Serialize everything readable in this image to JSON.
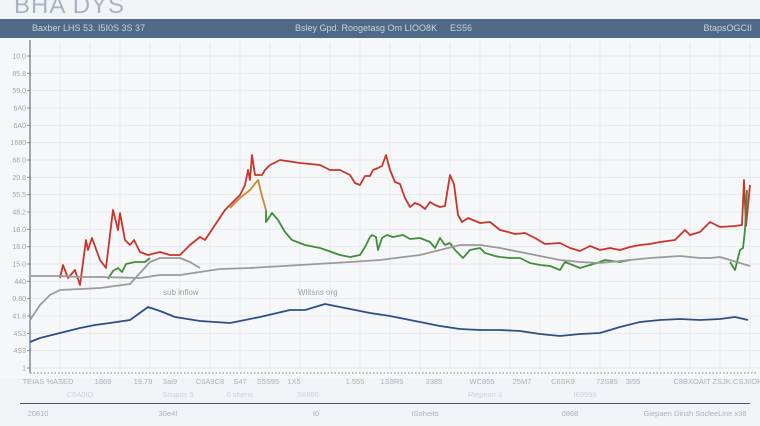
{
  "header": {
    "title": "BHA DYS",
    "bar_left": "Baxber LHS 53. I5I0S 3S 37",
    "bar_mid": "Bsley Gpd. Roogetasg Om LIOO8K",
    "bar_mid2": "ES56",
    "bar_right": "BtapsOGCII"
  },
  "colors": {
    "header_bar": "#4f6987",
    "red": "#c8352a",
    "green": "#3f8f3a",
    "orange": "#c98a2a",
    "gray": "#9a9a9a",
    "blue": "#2d4f86"
  },
  "annotations": [
    "sub inflow",
    "Wlitsns  org"
  ],
  "chart_data": {
    "type": "line",
    "grid": true,
    "xlim": [
      0,
      720
    ],
    "ylim": [
      0,
      312
    ],
    "y_tick_labels": [
      "10.0",
      "85.8",
      "59.0",
      "6A0",
      "6A0",
      "1680",
      "68.0",
      "20.8",
      "55.5",
      "48.2",
      "18.0",
      "18.0",
      "15.0",
      "440",
      "0.80",
      "41.8",
      "4S3",
      "4S3",
      "1"
    ],
    "x_tick_labels": [
      "TEIAS %ASED",
      "1869",
      "19.79",
      "3ai9",
      "C6A9C8",
      "S47",
      "S5S95",
      "1X5",
      "1.555",
      "1S9R5",
      "3385",
      "WC855",
      "25M7",
      "C6SK9",
      "72S85",
      "3I55",
      "C8BXOAIT ZSJK.CSJIIOH"
    ],
    "x_sub_labels": [
      "C6A0IO",
      "Scupos 5",
      "0 sheno",
      "S6880",
      "Riepeon 3",
      "I69999"
    ],
    "bottom_labels": [
      "20810",
      "30e4I",
      "I0",
      "ISoheits",
      "0868",
      "Giepaen Dinsh SocleeLine x36"
    ],
    "series": [
      {
        "color": "#c8352a",
        "points": [
          [
            30,
            90
          ],
          [
            33,
            103
          ],
          [
            38,
            90
          ],
          [
            45,
            98
          ],
          [
            50,
            83
          ],
          [
            56,
            128
          ],
          [
            58,
            118
          ],
          [
            62,
            130
          ],
          [
            70,
            108
          ],
          [
            76,
            100
          ],
          [
            83,
            158
          ],
          [
            88,
            138
          ],
          [
            90,
            155
          ],
          [
            95,
            128
          ],
          [
            100,
            123
          ],
          [
            104,
            128
          ],
          [
            110,
            116
          ],
          [
            118,
            113
          ],
          [
            130,
            116
          ],
          [
            140,
            113
          ],
          [
            150,
            113
          ],
          [
            160,
            123
          ],
          [
            170,
            131
          ],
          [
            175,
            128
          ],
          [
            185,
            143
          ],
          [
            195,
            158
          ],
          [
            200,
            163
          ],
          [
            210,
            173
          ],
          [
            215,
            183
          ],
          [
            218,
            198
          ],
          [
            220,
            188
          ],
          [
            222,
            213
          ],
          [
            225,
            193
          ],
          [
            232,
            193
          ],
          [
            235,
            198
          ],
          [
            240,
            203
          ],
          [
            250,
            208
          ],
          [
            270,
            205
          ],
          [
            290,
            203
          ],
          [
            300,
            198
          ],
          [
            310,
            198
          ],
          [
            320,
            193
          ],
          [
            325,
            185
          ],
          [
            330,
            183
          ],
          [
            335,
            192
          ],
          [
            340,
            192
          ],
          [
            343,
            198
          ],
          [
            348,
            200
          ],
          [
            352,
            202
          ],
          [
            356,
            213
          ],
          [
            360,
            198
          ],
          [
            365,
            186
          ],
          [
            370,
            184
          ],
          [
            375,
            170
          ],
          [
            380,
            161
          ],
          [
            385,
            165
          ],
          [
            390,
            163
          ],
          [
            395,
            159
          ],
          [
            400,
            166
          ],
          [
            405,
            163
          ],
          [
            410,
            161
          ],
          [
            415,
            162
          ],
          [
            420,
            193
          ],
          [
            424,
            184
          ],
          [
            428,
            153
          ],
          [
            432,
            146
          ],
          [
            438,
            150
          ],
          [
            450,
            145
          ],
          [
            460,
            146
          ],
          [
            470,
            138
          ],
          [
            478,
            136
          ],
          [
            485,
            134
          ],
          [
            495,
            135
          ],
          [
            505,
            130
          ],
          [
            515,
            124
          ],
          [
            530,
            125
          ],
          [
            540,
            120
          ],
          [
            550,
            117
          ],
          [
            560,
            122
          ],
          [
            570,
            118
          ],
          [
            580,
            120
          ],
          [
            590,
            118
          ],
          [
            600,
            121
          ],
          [
            610,
            123
          ],
          [
            620,
            124
          ],
          [
            630,
            126
          ],
          [
            645,
            128
          ],
          [
            655,
            138
          ],
          [
            660,
            133
          ],
          [
            670,
            136
          ],
          [
            680,
            146
          ],
          [
            690,
            141
          ],
          [
            705,
            142
          ],
          [
            712,
            143
          ],
          [
            714,
            188
          ],
          [
            716,
            142
          ],
          [
            720,
            183
          ]
        ]
      },
      {
        "color": "#c98a2a",
        "points": [
          [
            200,
            160
          ],
          [
            210,
            170
          ],
          [
            220,
            178
          ],
          [
            228,
            188
          ],
          [
            232,
            172
          ],
          [
            236,
            158
          ]
        ]
      },
      {
        "color": "#3f8f3a",
        "points": [
          [
            78,
            89
          ],
          [
            83,
            97
          ],
          [
            88,
            100
          ],
          [
            92,
            96
          ],
          [
            96,
            104
          ],
          [
            105,
            106
          ],
          [
            115,
            106
          ],
          [
            120,
            110
          ]
        ]
      },
      {
        "color": "#3f8f3a",
        "points": [
          [
            236,
            158
          ],
          [
            236,
            146
          ],
          [
            242,
            155
          ],
          [
            248,
            148
          ],
          [
            255,
            136
          ],
          [
            262,
            128
          ],
          [
            275,
            123
          ],
          [
            290,
            120
          ],
          [
            310,
            113
          ],
          [
            320,
            111
          ],
          [
            330,
            113
          ],
          [
            335,
            121
          ],
          [
            340,
            131
          ],
          [
            342,
            133
          ],
          [
            346,
            131
          ],
          [
            348,
            118
          ],
          [
            352,
            130
          ],
          [
            357,
            133
          ],
          [
            363,
            131
          ],
          [
            373,
            133
          ],
          [
            380,
            129
          ],
          [
            390,
            130
          ],
          [
            395,
            128
          ],
          [
            400,
            126
          ],
          [
            405,
            120
          ],
          [
            410,
            130
          ],
          [
            415,
            123
          ],
          [
            420,
            125
          ],
          [
            425,
            118
          ],
          [
            433,
            110
          ],
          [
            440,
            118
          ],
          [
            450,
            120
          ],
          [
            455,
            115
          ],
          [
            465,
            112
          ],
          [
            470,
            111
          ],
          [
            480,
            110
          ],
          [
            490,
            110
          ],
          [
            500,
            105
          ],
          [
            510,
            103
          ],
          [
            520,
            102
          ],
          [
            530,
            98
          ],
          [
            535,
            106
          ],
          [
            550,
            100
          ],
          [
            560,
            103
          ],
          [
            570,
            106
          ],
          [
            575,
            108
          ],
          [
            590,
            106
          ],
          [
            600,
            108
          ]
        ]
      },
      {
        "color": "#3f8f3a",
        "points": [
          [
            700,
            106
          ],
          [
            705,
            98
          ],
          [
            710,
            118
          ],
          [
            713,
            120
          ],
          [
            715,
            138
          ],
          [
            717,
            178
          ]
        ]
      },
      {
        "color": "#9a9a9a",
        "points": [
          [
            0,
            92
          ],
          [
            30,
            92
          ],
          [
            50,
            91
          ],
          [
            70,
            91
          ],
          [
            110,
            90
          ],
          [
            130,
            93
          ],
          [
            150,
            93
          ],
          [
            170,
            96
          ],
          [
            190,
            99
          ],
          [
            220,
            100
          ],
          [
            270,
            103
          ],
          [
            320,
            106
          ],
          [
            350,
            108
          ],
          [
            390,
            113
          ],
          [
            410,
            118
          ],
          [
            430,
            123
          ],
          [
            450,
            123
          ],
          [
            470,
            120
          ],
          [
            490,
            116
          ],
          [
            510,
            112
          ],
          [
            530,
            108
          ],
          [
            550,
            106
          ],
          [
            570,
            105
          ],
          [
            590,
            107
          ],
          [
            620,
            110
          ],
          [
            650,
            112
          ],
          [
            670,
            110
          ],
          [
            680,
            110
          ],
          [
            690,
            111
          ],
          [
            700,
            108
          ],
          [
            720,
            102
          ]
        ]
      },
      {
        "color": "#9a9a9a",
        "points": [
          [
            0,
            48
          ],
          [
            10,
            63
          ],
          [
            20,
            73
          ],
          [
            30,
            78
          ],
          [
            70,
            80
          ],
          [
            100,
            84
          ],
          [
            110,
            95
          ],
          [
            120,
            106
          ],
          [
            130,
            110
          ],
          [
            150,
            110
          ],
          [
            160,
            106
          ],
          [
            170,
            100
          ]
        ]
      },
      {
        "color": "#2d4f86",
        "points": [
          [
            0,
            26
          ],
          [
            10,
            30
          ],
          [
            30,
            35
          ],
          [
            50,
            40
          ],
          [
            65,
            43
          ],
          [
            80,
            45
          ],
          [
            100,
            48
          ],
          [
            118,
            61
          ],
          [
            130,
            57
          ],
          [
            145,
            51
          ],
          [
            170,
            47
          ],
          [
            200,
            45
          ],
          [
            230,
            51
          ],
          [
            260,
            58
          ],
          [
            275,
            58
          ],
          [
            295,
            64
          ],
          [
            315,
            60
          ],
          [
            340,
            55
          ],
          [
            360,
            52
          ],
          [
            390,
            46
          ],
          [
            410,
            42
          ],
          [
            430,
            39
          ],
          [
            450,
            38
          ],
          [
            470,
            38
          ],
          [
            490,
            37
          ],
          [
            510,
            34
          ],
          [
            530,
            32
          ],
          [
            550,
            34
          ],
          [
            570,
            35
          ],
          [
            590,
            41
          ],
          [
            610,
            46
          ],
          [
            630,
            48
          ],
          [
            650,
            49
          ],
          [
            670,
            48
          ],
          [
            690,
            49
          ],
          [
            705,
            51
          ],
          [
            718,
            48
          ]
        ]
      }
    ]
  }
}
